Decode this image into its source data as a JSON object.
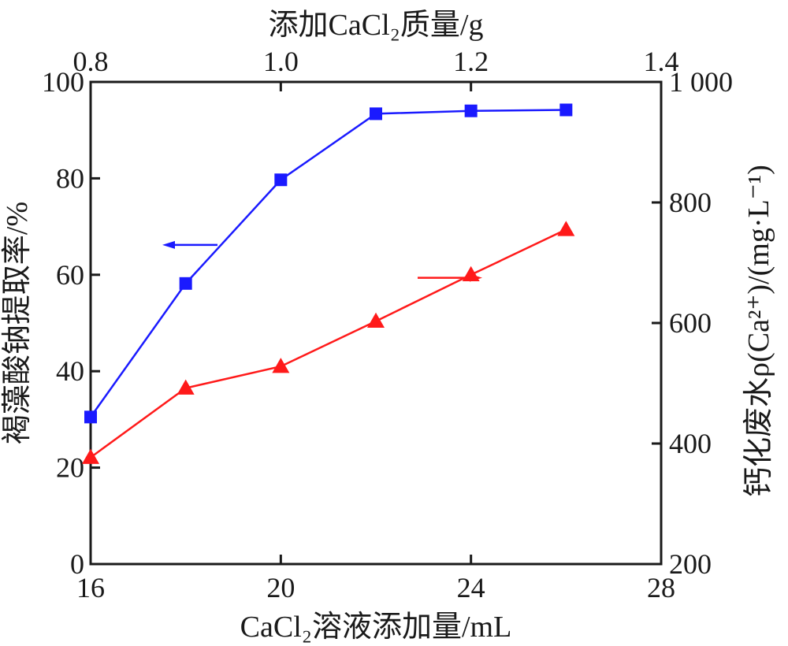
{
  "chart_data": {
    "type": "line",
    "x": [
      16,
      18,
      20,
      22,
      24,
      26
    ],
    "xlabel": "CaCl₂溶液添加量/mL",
    "xlim": [
      16,
      28
    ],
    "xticks": [
      "16",
      "20",
      "24",
      "28"
    ],
    "x2label": "添加CaCl₂质量/g",
    "x2lim": [
      0.8,
      1.4
    ],
    "x2ticks": [
      "0.8",
      "1.0",
      "1.2",
      "1.4"
    ],
    "ylabel": "褐藻酸钠提取率/%",
    "ylim": [
      0,
      100
    ],
    "yticks": [
      "0",
      "20",
      "40",
      "60",
      "80",
      "100"
    ],
    "y2label": "钙化废水ρ(Ca²⁺)/(mg·L⁻¹)",
    "y2lim": [
      200,
      1000
    ],
    "y2ticks": [
      "200",
      "400",
      "600",
      "800",
      "1 000"
    ],
    "series": [
      {
        "axis": "left",
        "color": "#1a1aff",
        "marker": "square",
        "values": [
          30.5,
          58.2,
          79.7,
          93.4,
          94.0,
          94.2
        ]
      },
      {
        "axis": "right",
        "color": "#ff1a1a",
        "marker": "triangle",
        "values": [
          377,
          492,
          528,
          603,
          680,
          755
        ]
      }
    ]
  }
}
